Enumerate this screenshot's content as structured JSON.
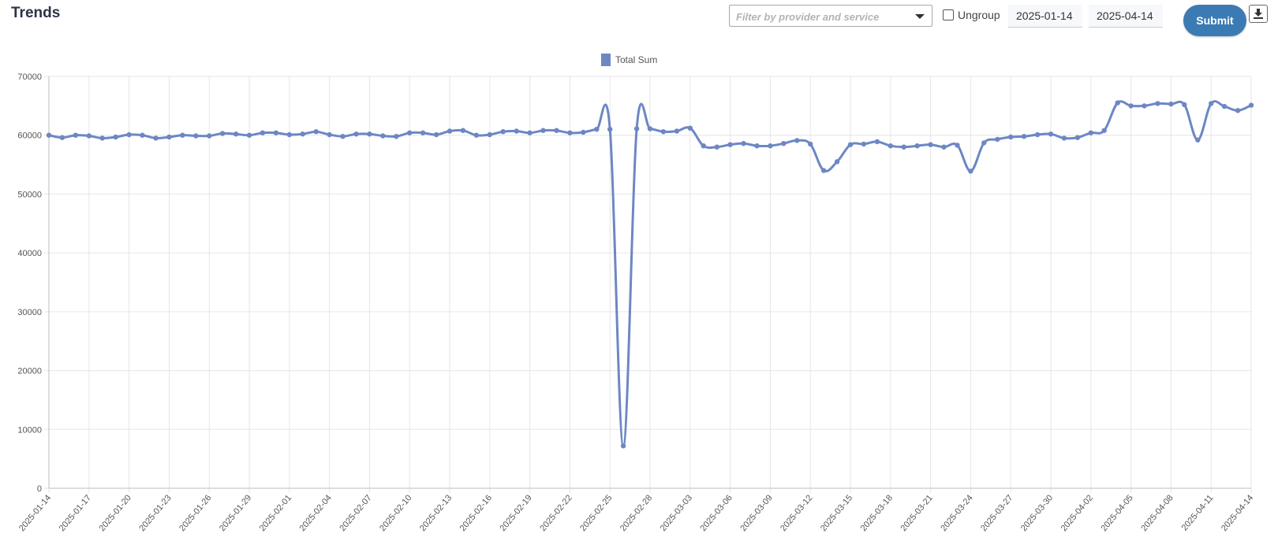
{
  "header": {
    "title": "Trends",
    "filter_placeholder": "Filter by provider and service",
    "ungroup_label": "Ungroup",
    "start_date": "2025-01-14",
    "end_date": "2025-04-14",
    "submit_label": "Submit"
  },
  "icons": {
    "filter_caret": "chevron-down-icon",
    "download": "download-icon"
  },
  "colors": {
    "series": "#6d87c4",
    "submit": "#3c7ab4",
    "grid": "#e6e6e6"
  },
  "chart_data": {
    "type": "line",
    "title": "",
    "xlabel": "",
    "ylabel": "",
    "legend": "top-center",
    "grid": true,
    "ylim": [
      0,
      70000
    ],
    "yticks": [
      0,
      10000,
      20000,
      30000,
      40000,
      50000,
      60000,
      70000
    ],
    "xticks": [
      "2025-01-14",
      "2025-01-17",
      "2025-01-20",
      "2025-01-23",
      "2025-01-26",
      "2025-01-29",
      "2025-02-01",
      "2025-02-04",
      "2025-02-07",
      "2025-02-10",
      "2025-02-13",
      "2025-02-16",
      "2025-02-19",
      "2025-02-22",
      "2025-02-25",
      "2025-02-28",
      "2025-03-03",
      "2025-03-06",
      "2025-03-09",
      "2025-03-12",
      "2025-03-15",
      "2025-03-18",
      "2025-03-21",
      "2025-03-24",
      "2025-03-27",
      "2025-03-30",
      "2025-04-02",
      "2025-04-05",
      "2025-04-08",
      "2025-04-11",
      "2025-04-14"
    ],
    "series": [
      {
        "name": "Total Sum",
        "x_start": "2025-01-14",
        "x_end": "2025-04-14",
        "values": [
          60000,
          59600,
          60000,
          59900,
          59500,
          59700,
          60100,
          60000,
          59500,
          59700,
          60000,
          59900,
          59900,
          60300,
          60200,
          60000,
          60400,
          60400,
          60100,
          60200,
          60600,
          60100,
          59800,
          60200,
          60200,
          59900,
          59800,
          60400,
          60400,
          60100,
          60700,
          60800,
          60000,
          60100,
          60600,
          60700,
          60400,
          60800,
          60800,
          60400,
          60500,
          61000,
          61000,
          7200,
          61100,
          61100,
          60600,
          60700,
          61200,
          58200,
          58000,
          58400,
          58600,
          58200,
          58200,
          58600,
          59100,
          58500,
          54000,
          55500,
          58400,
          58500,
          58900,
          58200,
          58000,
          58200,
          58400,
          58000,
          58300,
          53900,
          58700,
          59300,
          59700,
          59800,
          60100,
          60200,
          59500,
          59600,
          60400,
          60800,
          65500,
          65000,
          65000,
          65400,
          65300,
          65200,
          59200,
          65400,
          64900,
          64200,
          65100
        ]
      }
    ]
  }
}
